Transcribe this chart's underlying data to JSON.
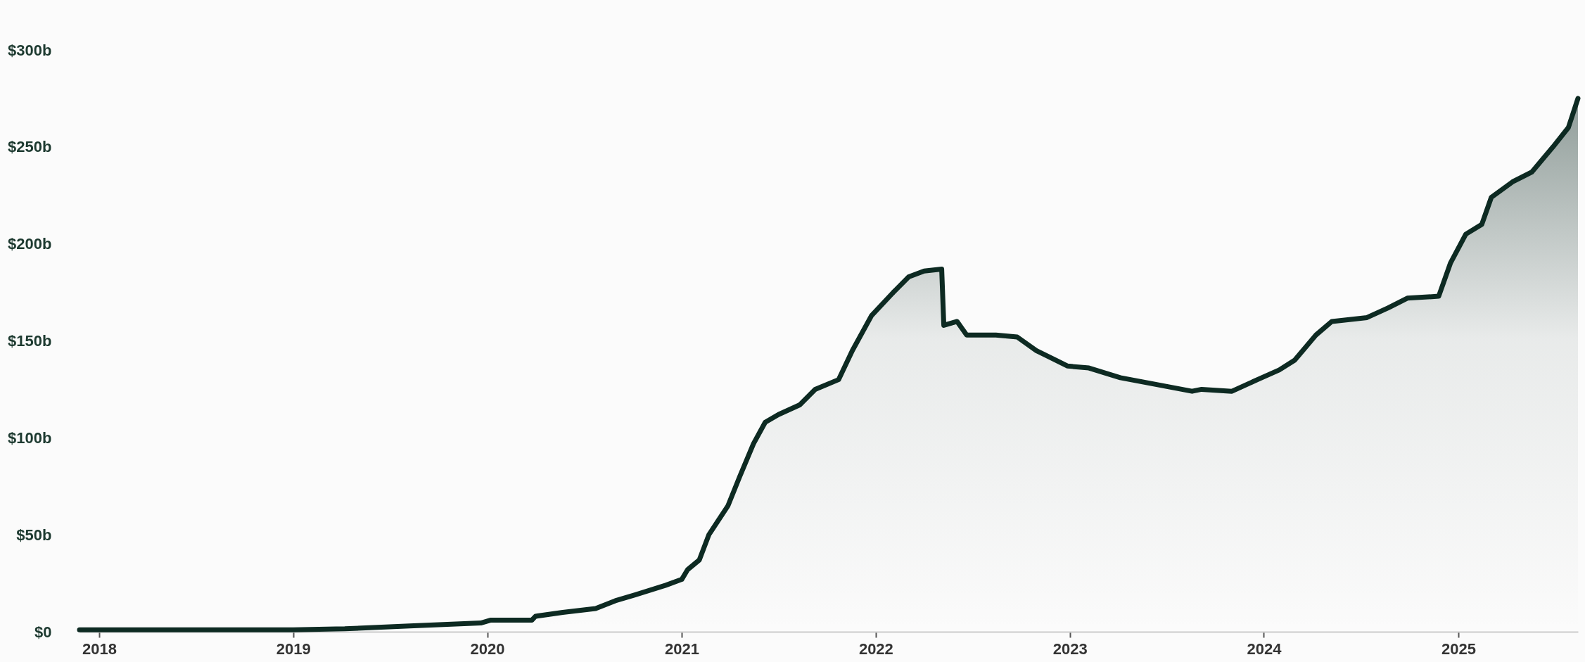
{
  "chart_data": {
    "type": "area",
    "x": [
      "2017-11-25",
      "2019-01-01",
      "2019-04-08",
      "2019-08-08",
      "2019-12-20",
      "2020-01-08",
      "2020-03-25",
      "2020-04-01",
      "2020-05-22",
      "2020-07-23",
      "2020-08-29",
      "2020-10-05",
      "2020-12-02",
      "2021-01-01",
      "2021-01-12",
      "2021-02-03",
      "2021-02-21",
      "2021-03-29",
      "2021-04-20",
      "2021-05-16",
      "2021-06-07",
      "2021-07-02",
      "2021-08-11",
      "2021-09-09",
      "2021-10-23",
      "2021-11-18",
      "2021-12-24",
      "2022-02-03",
      "2022-03-04",
      "2022-04-02",
      "2022-05-05",
      "2022-05-09",
      "2022-06-03",
      "2022-06-21",
      "2022-08-15",
      "2022-09-24",
      "2022-10-30",
      "2022-12-28",
      "2023-02-06",
      "2023-04-06",
      "2023-06-03",
      "2023-08-19",
      "2023-09-06",
      "2023-11-02",
      "2023-12-20",
      "2024-01-30",
      "2024-02-28",
      "2024-04-08",
      "2024-05-08",
      "2024-07-13",
      "2024-08-22",
      "2024-09-27",
      "2024-11-25",
      "2024-12-17",
      "2025-01-15",
      "2025-02-14",
      "2025-03-04",
      "2025-04-13",
      "2025-05-19",
      "2025-06-28",
      "2025-07-27",
      "2025-08-14"
    ],
    "series": [
      {
        "color": "#0d2a22",
        "values": [
          1,
          1,
          1.5,
          3,
          4.5,
          6,
          6,
          8,
          10,
          12,
          16,
          19,
          24,
          27,
          32,
          37,
          50,
          65,
          80,
          97,
          108,
          112,
          117,
          125,
          130,
          145,
          163,
          175,
          183,
          186,
          187,
          158,
          160,
          153,
          153,
          152,
          145,
          137,
          136,
          131,
          128,
          124,
          125,
          124,
          130,
          135,
          140,
          153,
          160,
          162,
          167,
          172,
          173,
          190,
          205,
          210,
          224,
          232,
          237,
          250,
          260,
          275
        ]
      }
    ],
    "xlim": [
      "2017-11-25",
      "2025-08-14"
    ],
    "xticks": [
      "2018",
      "2019",
      "2020",
      "2021",
      "2022",
      "2023",
      "2024",
      "2025"
    ],
    "ylim": [
      0,
      300
    ],
    "yticks": [
      {
        "value": 0,
        "label": "$0"
      },
      {
        "value": 50,
        "label": "$50b"
      },
      {
        "value": 100,
        "label": "$100b"
      },
      {
        "value": 150,
        "label": "$150b"
      },
      {
        "value": 200,
        "label": "$200b"
      },
      {
        "value": 250,
        "label": "$250b"
      },
      {
        "value": 300,
        "label": "$300b"
      }
    ],
    "grid": false
  }
}
